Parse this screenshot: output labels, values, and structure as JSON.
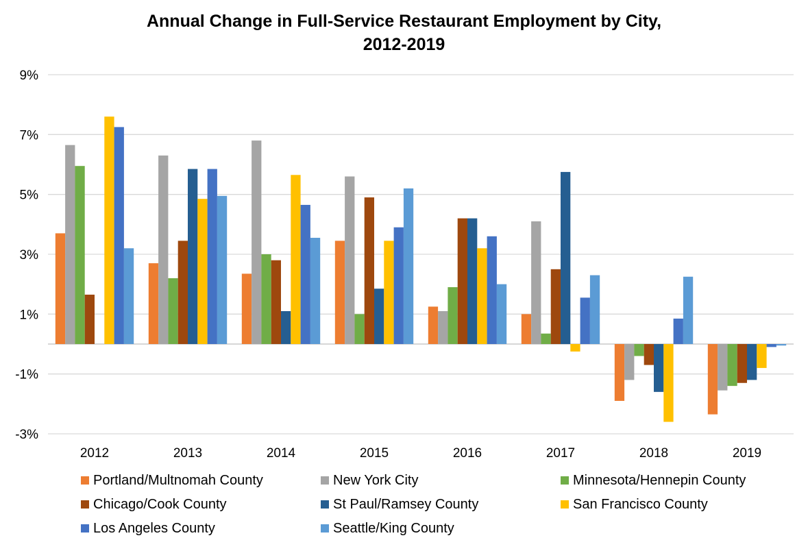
{
  "chart_data": {
    "type": "bar",
    "title_line1": "Annual Change in Full-Service Restaurant Employment by City,",
    "title_line2": "2012-2019",
    "xlabel": "",
    "ylabel": "",
    "ylim": [
      -3,
      9
    ],
    "y_ticks": [
      "9%",
      "7%",
      "5%",
      "3%",
      "1%",
      "-1%",
      "-3%"
    ],
    "y_tick_values": [
      9,
      7,
      5,
      3,
      1,
      -1,
      -3
    ],
    "grid": true,
    "legend_position": "bottom",
    "categories": [
      "2012",
      "2013",
      "2014",
      "2015",
      "2016",
      "2017",
      "2018",
      "2019"
    ],
    "series": [
      {
        "name": "Portland/Multnomah County",
        "color": "#ED7D31",
        "values": [
          3.7,
          2.7,
          2.35,
          3.45,
          1.25,
          1.0,
          -1.9,
          -2.35
        ]
      },
      {
        "name": "New York City",
        "color": "#A5A5A5",
        "values": [
          6.65,
          6.3,
          6.8,
          5.6,
          1.1,
          4.1,
          -1.2,
          -1.55
        ]
      },
      {
        "name": "Minnesota/Hennepin County",
        "color": "#70AD47",
        "values": [
          5.95,
          2.2,
          3.0,
          1.0,
          1.9,
          0.35,
          -0.4,
          -1.4
        ]
      },
      {
        "name": "Chicago/Cook County",
        "color": "#9E480E",
        "values": [
          1.65,
          3.45,
          2.8,
          4.9,
          4.2,
          2.5,
          -0.7,
          -1.3
        ]
      },
      {
        "name": "St Paul/Ramsey County",
        "color": "#255E91",
        "values": [
          0,
          5.85,
          1.1,
          1.85,
          4.2,
          5.75,
          -1.6,
          -1.2
        ]
      },
      {
        "name": "San Francisco County",
        "color": "#FFC000",
        "values": [
          7.6,
          4.85,
          5.65,
          3.45,
          3.2,
          -0.25,
          -2.6,
          -0.8
        ]
      },
      {
        "name": "Los Angeles County",
        "color": "#4472C4",
        "values": [
          7.25,
          5.85,
          4.65,
          3.9,
          3.6,
          1.55,
          0.85,
          -0.1
        ]
      },
      {
        "name": "Seattle/King County",
        "color": "#5B9BD5",
        "values": [
          3.2,
          4.95,
          3.55,
          5.2,
          2.0,
          2.3,
          2.25,
          -0.05
        ]
      }
    ]
  }
}
